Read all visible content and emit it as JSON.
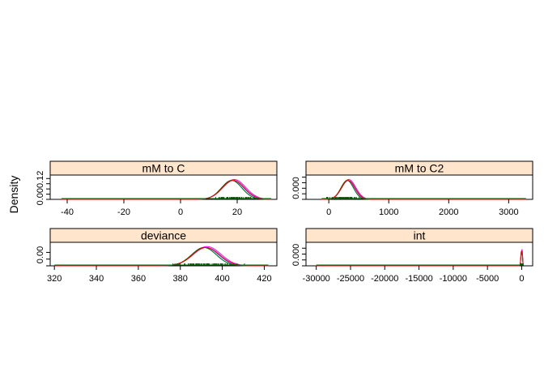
{
  "chart_data": {
    "type": "line",
    "layout": "lattice 2x2 density panels",
    "ylabel": "Density",
    "strip_color": "#ffe5cc",
    "series_colors": [
      "#0080ff",
      "#ff00ff",
      "#006400",
      "#ff0000"
    ],
    "rug_color": "#006400",
    "panels": [
      {
        "id": "mM_to_C",
        "title": "mM  to  C",
        "xlim": [
          -46,
          34
        ],
        "ylim": [
          0,
          0.14
        ],
        "xticks": [
          -40,
          -20,
          0,
          20
        ],
        "yticks": [
          0.0,
          0.12
        ],
        "yticklabels": [
          "0.00",
          "0.12"
        ],
        "ylabel_text": "0.000.12",
        "minor_yticks": [
          0.0,
          0.03,
          0.06,
          0.09,
          0.12
        ],
        "center": 18.5,
        "sd": 3.8,
        "range": [
          -42,
          32
        ],
        "rug": [
          9,
          28
        ]
      },
      {
        "id": "mM_to_C2",
        "title": "mM  to  C2",
        "xlim": [
          -380,
          3400
        ],
        "ylim": [
          0,
          0.0035
        ],
        "xticks": [
          0,
          1000,
          2000,
          3000
        ],
        "yticks": [
          0.0
        ],
        "yticklabels": [
          "0.000"
        ],
        "ylabel_text": "0.000",
        "minor_yticks": [
          0.0,
          0.0008,
          0.0016,
          0.0024,
          0.0032
        ],
        "center": 320,
        "sd": 110,
        "range": [
          -120,
          3290
        ],
        "rug": [
          -80,
          600
        ]
      },
      {
        "id": "deviance",
        "title": "deviance",
        "xlim": [
          318,
          426
        ],
        "ylim": [
          0,
          0.07
        ],
        "xticks": [
          320,
          340,
          360,
          380,
          400,
          420
        ],
        "yticks": [
          0.0
        ],
        "yticklabels": [
          "0.00"
        ],
        "ylabel_text": "0.00",
        "minor_yticks": [
          0.0,
          0.02,
          0.04
        ],
        "center": 392,
        "sd": 6.2,
        "range": [
          320,
          422
        ],
        "rug": [
          372,
          412
        ]
      },
      {
        "id": "int",
        "title": "int",
        "xlim": [
          -31500,
          1600
        ],
        "ylim": [
          0,
          0.08
        ],
        "xticks": [
          -30000,
          -25000,
          -20000,
          -15000,
          -10000,
          -5000,
          0
        ],
        "yticks": [
          0.0
        ],
        "yticklabels": [
          "0.000"
        ],
        "ylabel_text": "0.000",
        "minor_yticks": [
          0.0,
          0.02,
          0.04,
          0.06
        ],
        "center": 0,
        "sd": 90,
        "range": [
          -30000,
          200
        ],
        "rug": [
          -250,
          250
        ]
      }
    ]
  }
}
